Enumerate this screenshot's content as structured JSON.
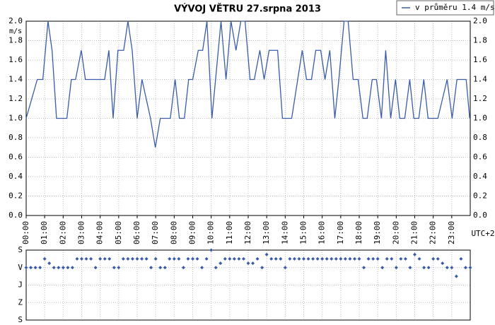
{
  "chart_data": [
    {
      "type": "line",
      "title": "VÝVOJ VĚTRU  27.srpna 2013",
      "ylabel": "m/s",
      "xlabel": "UTC+2",
      "legend": "upper right",
      "grid": true,
      "xlim": [
        0,
        24
      ],
      "ylim": [
        0,
        2
      ],
      "yticks": [
        {
          "value": 0,
          "label": "0.0"
        },
        0.2,
        0.4,
        0.6,
        0.8,
        {
          "value": 1,
          "label": "1.0"
        },
        1.2,
        1.4,
        1.6,
        1.8,
        {
          "value": 2,
          "label": "2.0"
        }
      ],
      "xticks": [
        {
          "value": 0,
          "label": "00:00"
        },
        {
          "value": 1,
          "label": "01:00"
        },
        {
          "value": 2,
          "label": "02:00"
        },
        {
          "value": 3,
          "label": "03:00"
        },
        {
          "value": 4,
          "label": "04:00"
        },
        {
          "value": 5,
          "label": "05:00"
        },
        {
          "value": 6,
          "label": "06:00"
        },
        {
          "value": 7,
          "label": "07:00"
        },
        {
          "value": 8,
          "label": "08:00"
        },
        {
          "value": 9,
          "label": "09:00"
        },
        {
          "value": 10,
          "label": "10:00"
        },
        {
          "value": 11,
          "label": "11:00"
        },
        {
          "value": 12,
          "label": "12:00"
        },
        {
          "value": 13,
          "label": "13:00"
        },
        {
          "value": 14,
          "label": "14:00"
        },
        {
          "value": 15,
          "label": "15:00"
        },
        {
          "value": 16,
          "label": "16:00"
        },
        {
          "value": 17,
          "label": "17:00"
        },
        {
          "value": 18,
          "label": "18:00"
        },
        {
          "value": 19,
          "label": "19:00"
        },
        {
          "value": 20,
          "label": "20:00"
        },
        {
          "value": 21,
          "label": "21:00"
        },
        {
          "value": 22,
          "label": "22:00"
        },
        {
          "value": 23,
          "label": "23:00"
        }
      ],
      "series": [
        {
          "name": "v průměru 1.4 m/s",
          "color": "#3a5ca8",
          "x": [
            0,
            0.6,
            0.9,
            1.18,
            1.4,
            1.64,
            2.2,
            2.44,
            2.67,
            2.98,
            3.2,
            4.24,
            4.47,
            4.7,
            4.96,
            5.27,
            5.5,
            5.73,
            6.0,
            6.26,
            6.72,
            6.98,
            7.25,
            7.79,
            8.05,
            8.28,
            8.55,
            8.78,
            9.0,
            9.3,
            9.54,
            9.77,
            10.04,
            10.53,
            10.8,
            11.07,
            11.34,
            11.6,
            11.83,
            12.1,
            12.33,
            12.63,
            12.86,
            13.13,
            13.59,
            13.85,
            14.35,
            14.92,
            15.15,
            15.42,
            15.65,
            15.92,
            16.15,
            16.41,
            16.68,
            16.9,
            17.18,
            17.4,
            17.67,
            17.94,
            18.2,
            18.43,
            18.7,
            18.93,
            19.2,
            19.43,
            19.7,
            19.96,
            20.19,
            20.46,
            20.73,
            20.95,
            21.22,
            21.49,
            21.72,
            22.25,
            22.75,
            23.02,
            23.28,
            23.78,
            23.97
          ],
          "values": [
            1.0,
            1.4,
            1.4,
            2.0,
            1.7,
            1.0,
            1.0,
            1.4,
            1.4,
            1.7,
            1.4,
            1.4,
            1.7,
            1.0,
            1.7,
            1.7,
            2.0,
            1.7,
            1.0,
            1.4,
            1.0,
            0.7,
            1.0,
            1.0,
            1.4,
            1.0,
            1.0,
            1.4,
            1.4,
            1.7,
            1.7,
            2.0,
            1.0,
            2.0,
            1.4,
            2.0,
            1.7,
            2.0,
            2.0,
            1.4,
            1.4,
            1.7,
            1.4,
            1.7,
            1.7,
            1.0,
            1.0,
            1.7,
            1.4,
            1.4,
            1.7,
            1.7,
            1.4,
            1.7,
            1.0,
            1.4,
            2.0,
            2.0,
            1.4,
            1.4,
            1.0,
            1.0,
            1.4,
            1.4,
            1.0,
            1.7,
            1.0,
            1.4,
            1.0,
            1.0,
            1.4,
            1.0,
            1.0,
            1.4,
            1.0,
            1.0,
            1.4,
            1.0,
            1.4,
            1.4,
            1.0
          ]
        }
      ]
    },
    {
      "type": "scatter",
      "xlim": [
        0,
        24
      ],
      "ylim": [
        360,
        0
      ],
      "grid": true,
      "yticks": [
        {
          "value": 0,
          "label": "S"
        },
        {
          "value": 90,
          "label": "V"
        },
        {
          "value": 180,
          "label": "J"
        },
        {
          "value": 270,
          "label": "Z"
        },
        {
          "value": 360,
          "label": "S"
        }
      ],
      "series": [
        {
          "color": "#3a5ca8",
          "x": [
            0,
            0.25,
            0.5,
            0.75,
            1,
            1.25,
            1.5,
            1.75,
            2,
            2.25,
            2.5,
            2.75,
            3,
            3.25,
            3.5,
            3.75,
            4,
            4.25,
            4.5,
            4.75,
            5,
            5.25,
            5.5,
            5.75,
            6,
            6.25,
            6.5,
            6.75,
            7,
            7.25,
            7.5,
            7.75,
            8,
            8.25,
            8.5,
            8.75,
            9,
            9.25,
            9.5,
            9.75,
            10,
            10.25,
            10.5,
            10.75,
            11,
            11.25,
            11.5,
            11.75,
            12,
            12.25,
            12.5,
            12.75,
            13,
            13.25,
            13.5,
            13.75,
            14,
            14.25,
            14.5,
            14.75,
            15,
            15.25,
            15.5,
            15.75,
            16,
            16.25,
            16.5,
            16.75,
            17,
            17.25,
            17.5,
            17.75,
            18,
            18.25,
            18.5,
            18.75,
            19,
            19.25,
            19.5,
            19.75,
            20,
            20.25,
            20.5,
            20.75,
            21,
            21.25,
            21.5,
            21.75,
            22,
            22.25,
            22.5,
            22.75,
            23,
            23.25,
            23.5,
            23.75,
            24
          ],
          "values": [
            90,
            90,
            90,
            90,
            45,
            67.5,
            90,
            90,
            90,
            90,
            90,
            45,
            45,
            45,
            45,
            90,
            45,
            45,
            45,
            90,
            90,
            45,
            45,
            45,
            45,
            45,
            45,
            90,
            45,
            90,
            90,
            45,
            45,
            45,
            90,
            45,
            45,
            45,
            90,
            45,
            0,
            90,
            67.5,
            45,
            45,
            45,
            45,
            45,
            67.5,
            67.5,
            45,
            90,
            22.5,
            45,
            45,
            45,
            90,
            45,
            45,
            45,
            45,
            45,
            45,
            45,
            45,
            45,
            45,
            45,
            45,
            45,
            45,
            45,
            45,
            90,
            45,
            45,
            45,
            90,
            45,
            45,
            90,
            45,
            45,
            90,
            22.5,
            45,
            90,
            90,
            45,
            45,
            67.5,
            90,
            90,
            135,
            45,
            90,
            90
          ]
        }
      ]
    }
  ]
}
